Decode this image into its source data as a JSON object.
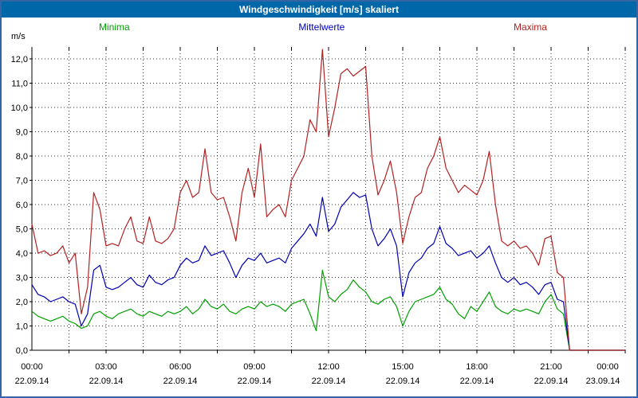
{
  "window": {
    "title": "Windgeschwindigkeit [m/s] skaliert"
  },
  "colors": {
    "titlebar_bg": "#0068a8",
    "titlebar_text": "#ffffff",
    "page_border": "#3465a4",
    "grid": "#333333",
    "minima": "#00a000",
    "mittelwerte": "#0000b0",
    "maxima": "#b22222"
  },
  "chart_data": {
    "type": "line",
    "title": "Windgeschwindigkeit [m/s] skaliert",
    "xlabel": "",
    "ylabel": "m/s",
    "ylim": [
      0,
      12.5
    ],
    "grid": "dotted; horizontal every 1.0 m/s, vertical every 1.5 h",
    "legend_position": "top",
    "x_unit": "hours",
    "x_step_hours": 0.25,
    "x_range_hours": [
      0,
      24
    ],
    "y_ticks": [
      0,
      1,
      2,
      3,
      4,
      5,
      6,
      7,
      8,
      9,
      10,
      11,
      12
    ],
    "y_tick_labels": [
      "0,0",
      "1,0",
      "2,0",
      "3,0",
      "4,0",
      "5,0",
      "6,0",
      "7,0",
      "8,0",
      "9,0",
      "10,0",
      "11,0",
      "12,0"
    ],
    "x_ticks": [
      {
        "hour": 0,
        "time": "00:00",
        "date": "22.09.14"
      },
      {
        "hour": 3,
        "time": "03:00",
        "date": "22.09.14"
      },
      {
        "hour": 6,
        "time": "06:00",
        "date": "22.09.14"
      },
      {
        "hour": 9,
        "time": "09:00",
        "date": "22.09.14"
      },
      {
        "hour": 12,
        "time": "12:00",
        "date": "22.09.14"
      },
      {
        "hour": 15,
        "time": "15:00",
        "date": "22.09.14"
      },
      {
        "hour": 18,
        "time": "18:00",
        "date": "22.09.14"
      },
      {
        "hour": 21,
        "time": "21:00",
        "date": "22.09.14"
      },
      {
        "hour": 24,
        "time": "00:00",
        "date": "23.09.14"
      }
    ],
    "series": [
      {
        "name": "Minima",
        "color": "#00a000",
        "values": [
          1.6,
          1.4,
          1.3,
          1.2,
          1.3,
          1.4,
          1.2,
          1.1,
          0.9,
          1.0,
          1.5,
          1.6,
          1.4,
          1.3,
          1.5,
          1.6,
          1.7,
          1.5,
          1.4,
          1.6,
          1.5,
          1.4,
          1.6,
          1.5,
          1.6,
          1.8,
          1.5,
          1.7,
          2.1,
          1.8,
          1.7,
          1.9,
          1.6,
          1.5,
          1.7,
          1.8,
          1.7,
          2.0,
          1.8,
          1.9,
          1.8,
          1.6,
          1.9,
          2.0,
          2.1,
          1.5,
          0.8,
          3.3,
          2.2,
          2.0,
          2.3,
          2.5,
          2.9,
          2.6,
          2.4,
          2.0,
          1.9,
          2.1,
          2.2,
          1.8,
          1.0,
          1.6,
          2.0,
          2.1,
          2.2,
          2.3,
          2.6,
          2.1,
          1.9,
          1.5,
          1.3,
          1.8,
          1.6,
          2.0,
          2.4,
          1.8,
          1.6,
          1.5,
          1.7,
          1.6,
          1.7,
          1.6,
          1.5,
          2.0,
          2.3,
          1.7,
          1.5,
          0.0,
          0,
          0,
          0,
          0,
          0,
          0,
          0,
          0,
          0
        ]
      },
      {
        "name": "Mittelwerte",
        "color": "#0000b0",
        "values": [
          2.7,
          2.3,
          2.2,
          2.0,
          2.1,
          2.2,
          2.0,
          1.9,
          1.0,
          1.5,
          3.3,
          3.5,
          2.6,
          2.5,
          2.6,
          2.8,
          3.0,
          2.7,
          2.6,
          3.1,
          2.8,
          2.7,
          2.9,
          3.0,
          3.5,
          3.8,
          3.6,
          3.7,
          4.3,
          3.9,
          4.0,
          4.1,
          3.6,
          3.0,
          3.5,
          3.8,
          3.7,
          4.0,
          3.6,
          3.7,
          3.8,
          3.6,
          4.2,
          4.5,
          4.8,
          5.2,
          4.7,
          6.3,
          4.9,
          5.2,
          5.9,
          6.2,
          6.5,
          6.3,
          6.4,
          5.0,
          4.3,
          4.6,
          5.0,
          4.3,
          2.2,
          3.2,
          3.6,
          3.8,
          4.2,
          4.4,
          5.1,
          4.4,
          4.2,
          3.9,
          4.0,
          4.1,
          3.8,
          4.0,
          4.3,
          3.6,
          3.0,
          2.8,
          3.0,
          2.7,
          2.8,
          2.6,
          2.3,
          2.7,
          2.8,
          2.1,
          2.0,
          0.0,
          0,
          0,
          0,
          0,
          0,
          0,
          0,
          0,
          0
        ]
      },
      {
        "name": "Maxima",
        "color": "#b22222",
        "values": [
          5.2,
          4.0,
          4.1,
          3.9,
          4.0,
          4.3,
          3.6,
          4.0,
          1.5,
          2.6,
          6.5,
          5.8,
          4.3,
          4.4,
          4.3,
          5.0,
          5.5,
          4.5,
          4.4,
          5.5,
          4.5,
          4.4,
          4.6,
          5.0,
          6.5,
          7.0,
          6.3,
          6.5,
          8.3,
          6.5,
          6.2,
          6.3,
          5.5,
          4.5,
          6.5,
          7.5,
          6.3,
          8.5,
          5.5,
          5.8,
          6.0,
          5.5,
          7.0,
          7.5,
          8.0,
          9.5,
          9.0,
          12.4,
          8.8,
          10.0,
          11.4,
          11.6,
          11.3,
          11.5,
          11.7,
          8.0,
          6.4,
          7.0,
          7.8,
          6.5,
          4.4,
          5.5,
          6.3,
          6.5,
          7.5,
          8.0,
          8.8,
          7.5,
          7.0,
          6.5,
          6.8,
          6.6,
          6.4,
          7.0,
          8.2,
          6.0,
          4.5,
          4.3,
          4.5,
          4.2,
          4.3,
          4.0,
          3.5,
          4.6,
          4.7,
          3.2,
          3.0,
          0.0,
          0,
          0,
          0,
          0,
          0,
          0,
          0,
          0,
          0
        ]
      }
    ]
  }
}
